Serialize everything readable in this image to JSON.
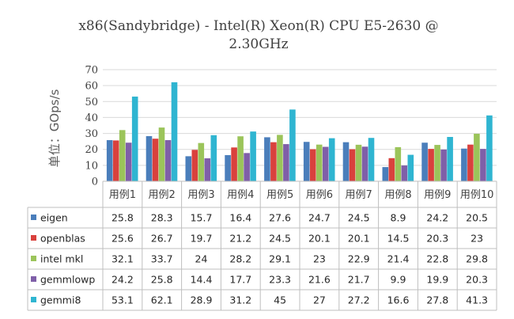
{
  "chart_data": {
    "type": "bar",
    "title": "x86(Sandybridge) - Intel(R) Xeon(R) CPU E5-2630 @ 2.30GHz",
    "ylabel": "单位：GOps/s",
    "ylim": [
      0,
      70
    ],
    "yticks": [
      0,
      10,
      20,
      30,
      40,
      50,
      60,
      70
    ],
    "grid": true,
    "legend": "table-below",
    "categories": [
      "用例1",
      "用例2",
      "用例3",
      "用例4",
      "用例5",
      "用例6",
      "用例7",
      "用例8",
      "用例9",
      "用例10"
    ],
    "series": [
      {
        "name": "eigen",
        "color": "#4a7ebb",
        "values": [
          25.8,
          28.3,
          15.7,
          16.4,
          27.6,
          24.7,
          24.5,
          8.9,
          24.2,
          20.5
        ]
      },
      {
        "name": "openblas",
        "color": "#d9413d",
        "values": [
          25.6,
          26.7,
          19.7,
          21.2,
          24.5,
          20.1,
          20.1,
          14.5,
          20.3,
          23
        ]
      },
      {
        "name": "intel mkl",
        "color": "#9bc45a",
        "values": [
          32.1,
          33.7,
          24,
          28.2,
          29.1,
          23,
          22.9,
          21.4,
          22.8,
          29.8
        ]
      },
      {
        "name": "gemmlowp",
        "color": "#7f5fa8",
        "values": [
          24.2,
          25.8,
          14.4,
          17.7,
          23.3,
          21.6,
          21.7,
          9.9,
          19.9,
          20.3
        ]
      },
      {
        "name": "gemmi8",
        "color": "#2fb5d1",
        "values": [
          53.1,
          62.1,
          28.9,
          31.2,
          45,
          27,
          27.2,
          16.6,
          27.8,
          41.3
        ]
      }
    ]
  }
}
